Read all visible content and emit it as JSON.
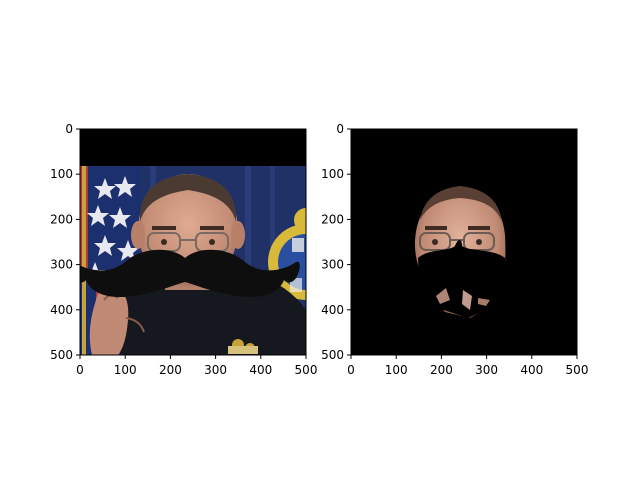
{
  "chart_data": [
    {
      "type": "image",
      "title": "",
      "xlabel": "",
      "ylabel": "",
      "xlim": [
        0,
        500
      ],
      "ylim": [
        500,
        0
      ],
      "xticks": [
        0,
        100,
        200,
        300,
        400,
        500
      ],
      "yticks": [
        0,
        100,
        200,
        300,
        400,
        500
      ],
      "xtick_labels": [
        "0",
        "100",
        "200",
        "300",
        "400",
        "500"
      ],
      "ytick_labels": [
        "0",
        "100",
        "200",
        "300",
        "400",
        "500"
      ],
      "content": "photo of a man in police uniform with a black mustache overlay"
    },
    {
      "type": "image",
      "title": "",
      "xlabel": "",
      "ylabel": "",
      "xlim": [
        0,
        500
      ],
      "ylim": [
        500,
        0
      ],
      "xticks": [
        0,
        100,
        200,
        300,
        400,
        500
      ],
      "yticks": [
        0,
        100,
        200,
        300,
        400,
        500
      ],
      "xtick_labels": [
        "0",
        "100",
        "200",
        "300",
        "400",
        "500"
      ],
      "ytick_labels": [
        "0",
        "100",
        "200",
        "300",
        "400",
        "500"
      ],
      "content": "masked face region on black background with mustache shape blacked out"
    }
  ],
  "colors": {
    "background": "#ffffff",
    "image_black": "#000000",
    "flag_blue": "#1c2f6e",
    "curtain_blue": "#22356e",
    "skin": "#c9957d",
    "uniform": "#15181f",
    "seal_gold": "#d8b93a",
    "seal_blue": "#2a4fa0"
  }
}
